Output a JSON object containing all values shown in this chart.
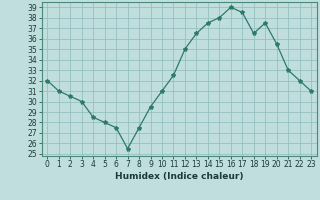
{
  "x": [
    0,
    1,
    2,
    3,
    4,
    5,
    6,
    7,
    8,
    9,
    10,
    11,
    12,
    13,
    14,
    15,
    16,
    17,
    18,
    19,
    20,
    21,
    22,
    23
  ],
  "y": [
    32,
    31,
    30.5,
    30,
    28.5,
    28,
    27.5,
    25.5,
    27.5,
    29.5,
    31,
    32.5,
    35,
    36.5,
    37.5,
    38,
    39,
    38.5,
    36.5,
    37.5,
    35.5,
    33,
    32,
    31
  ],
  "line_color": "#2d7a6a",
  "marker": "*",
  "marker_size": 3,
  "bg_color": "#c0dede",
  "grid_color": "#90bbbb",
  "xlabel": "Humidex (Indice chaleur)",
  "xlim": [
    -0.5,
    23.5
  ],
  "ylim": [
    24.8,
    39.5
  ],
  "yticks": [
    25,
    26,
    27,
    28,
    29,
    30,
    31,
    32,
    33,
    34,
    35,
    36,
    37,
    38,
    39
  ],
  "xticks": [
    0,
    1,
    2,
    3,
    4,
    5,
    6,
    7,
    8,
    9,
    10,
    11,
    12,
    13,
    14,
    15,
    16,
    17,
    18,
    19,
    20,
    21,
    22,
    23
  ],
  "tick_fontsize": 5.5,
  "xlabel_fontsize": 6.5
}
